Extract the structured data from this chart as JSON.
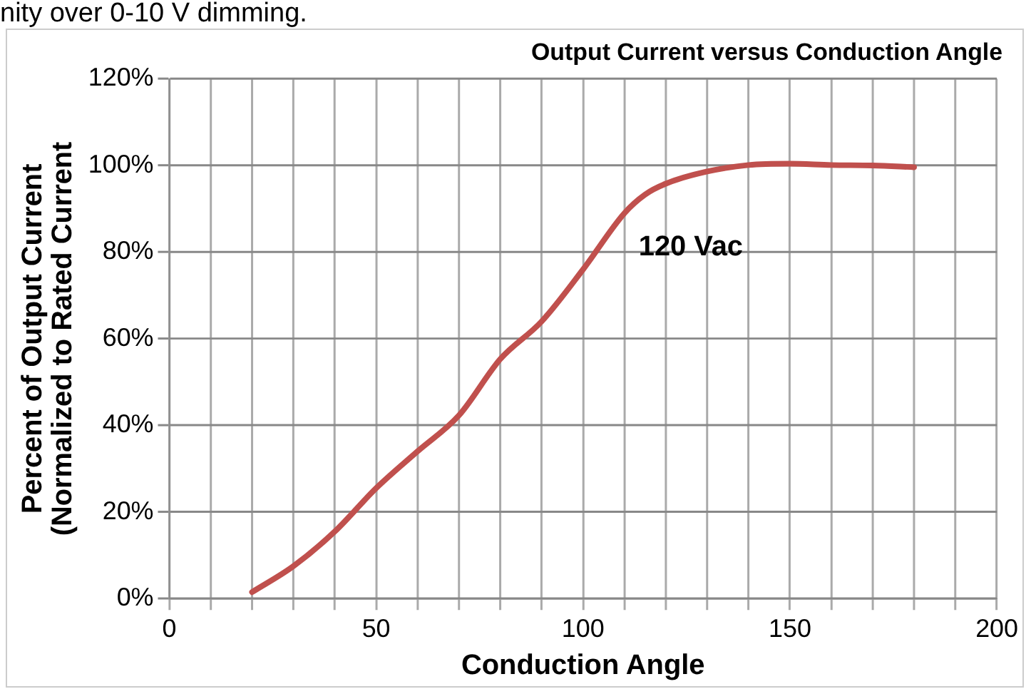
{
  "chart_data": {
    "type": "line",
    "title": "Output Current versus Conduction Angle",
    "xlabel": "Conduction Angle",
    "ylabel": "Percent of Output Current\n(Normalized to Rated Current",
    "annotations": [
      "nity over 0-10 V dimming."
    ],
    "x": [
      20,
      30,
      40,
      50,
      60,
      70,
      80,
      90,
      100,
      110,
      115,
      120,
      130,
      140,
      150,
      160,
      170,
      180
    ],
    "series": [
      {
        "name": "120 Vac",
        "color": "#c0504d",
        "values": [
          1.5,
          7.5,
          15.5,
          25.5,
          34,
          42.3,
          55.3,
          64,
          76,
          89,
          93.3,
          95.8,
          98.6,
          100.1,
          100.4,
          100.1,
          100,
          99.6
        ]
      }
    ],
    "xlim": [
      0,
      200
    ],
    "xticks": [
      0,
      {
        "value": 10,
        "label": null
      },
      {
        "value": 20,
        "label": null
      },
      {
        "value": 30,
        "label": null
      },
      {
        "value": 40,
        "label": null
      },
      50,
      {
        "value": 60,
        "label": null
      },
      {
        "value": 70,
        "label": null
      },
      {
        "value": 80,
        "label": null
      },
      {
        "value": 90,
        "label": null
      },
      100,
      {
        "value": 110,
        "label": null
      },
      {
        "value": 120,
        "label": null
      },
      {
        "value": 130,
        "label": null
      },
      {
        "value": 140,
        "label": null
      },
      150,
      {
        "value": 160,
        "label": null
      },
      {
        "value": 170,
        "label": null
      },
      {
        "value": 180,
        "label": null
      },
      {
        "value": 190,
        "label": null
      },
      200
    ],
    "ylim": [
      0,
      120
    ],
    "yticks": [
      {
        "value": 0,
        "label": "0%"
      },
      {
        "value": 20,
        "label": "20%"
      },
      {
        "value": 40,
        "label": "40%"
      },
      {
        "value": 60,
        "label": "60%"
      },
      {
        "value": 80,
        "label": "80%"
      },
      {
        "value": 100,
        "label": "100%"
      },
      {
        "value": 120,
        "label": "120%"
      }
    ],
    "grid": true,
    "legend": false,
    "marker": "none",
    "line_style": "solid"
  }
}
